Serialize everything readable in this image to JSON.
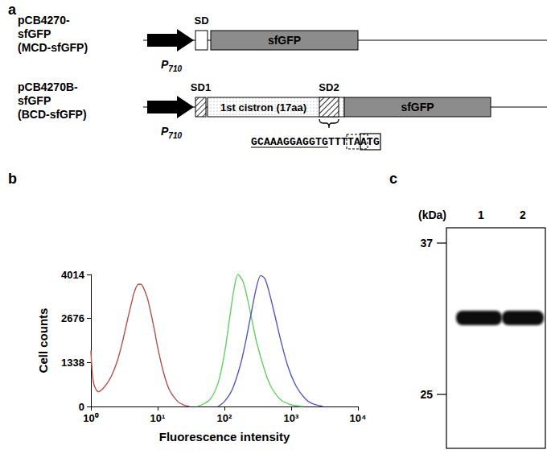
{
  "panel_labels": [
    "a",
    "b",
    "c"
  ],
  "diagram": {
    "constructs": [
      {
        "name": "pCB4270-sfGFP",
        "alias": "(MCD-sfGFP)",
        "promoter": "P",
        "promoter_subscript": "710",
        "elements": [
          {
            "label": "SD",
            "kind": "rbs_plain"
          },
          {
            "label": "sfGFP",
            "kind": "gene"
          }
        ]
      },
      {
        "name": "pCB4270B-sfGFP",
        "alias": "(BCD-sfGFP)",
        "promoter": "P",
        "promoter_subscript": "710",
        "elements": [
          {
            "label": "SD1",
            "kind": "rbs"
          },
          {
            "label": "1st cistron (17aa)",
            "kind": "cistron"
          },
          {
            "label": "SD2",
            "kind": "rbs"
          },
          {
            "label": "sfGFP",
            "kind": "gene"
          }
        ]
      }
    ],
    "sequence": {
      "text": "GCAAAGGAGGTGTTTTAATG",
      "underlined": "GCAAAGGAGGTG",
      "dashed_box": "TAA",
      "solid_box": "ATG"
    }
  },
  "chart_data": {
    "type": "line",
    "x_label": "Fluorescence intensity",
    "y_label": "Cell counts",
    "log": "x",
    "grid": false,
    "xlim": [
      1,
      10000
    ],
    "xticks": [
      {
        "value": 1,
        "label": "10⁰"
      },
      {
        "value": 10,
        "label": "10¹"
      },
      {
        "value": 100,
        "label": "10²"
      },
      {
        "value": 1000,
        "label": "10³"
      },
      {
        "value": 10000,
        "label": "10⁴"
      }
    ],
    "ylim": [
      0,
      4014
    ],
    "yticks": [
      0,
      1338,
      2676,
      4014
    ],
    "series": [
      {
        "color": "#b8504b",
        "x": [
          1,
          1.1,
          1.3,
          1.6,
          2,
          2.5,
          3,
          3.5,
          4,
          4.5,
          5,
          5.5,
          6,
          7,
          8,
          9,
          10,
          12,
          15,
          20,
          25,
          30
        ],
        "values": [
          1700,
          700,
          450,
          600,
          900,
          1400,
          2000,
          2600,
          3100,
          3500,
          3700,
          3720,
          3650,
          3300,
          2800,
          2300,
          1800,
          1100,
          500,
          150,
          40,
          0
        ]
      },
      {
        "color": "#5fd35f",
        "x": [
          40,
          60,
          80,
          100,
          120,
          140,
          160,
          190,
          220,
          260,
          300,
          400,
          500,
          700,
          1000,
          1500
        ],
        "values": [
          0,
          200,
          700,
          1600,
          2700,
          3600,
          4014,
          3800,
          3300,
          2600,
          2000,
          1100,
          600,
          200,
          50,
          0
        ]
      },
      {
        "color": "#5555d0",
        "x": [
          80,
          100,
          130,
          170,
          200,
          250,
          300,
          350,
          400,
          450,
          550,
          700,
          900,
          1200,
          1600,
          2000,
          3000
        ],
        "values": [
          0,
          150,
          500,
          1200,
          1800,
          2800,
          3600,
          3980,
          3900,
          3600,
          2900,
          2000,
          1200,
          600,
          250,
          100,
          0
        ]
      }
    ]
  },
  "blot": {
    "units": "(kDa)",
    "lanes": [
      "1",
      "2"
    ],
    "markers": [
      37,
      25
    ]
  }
}
